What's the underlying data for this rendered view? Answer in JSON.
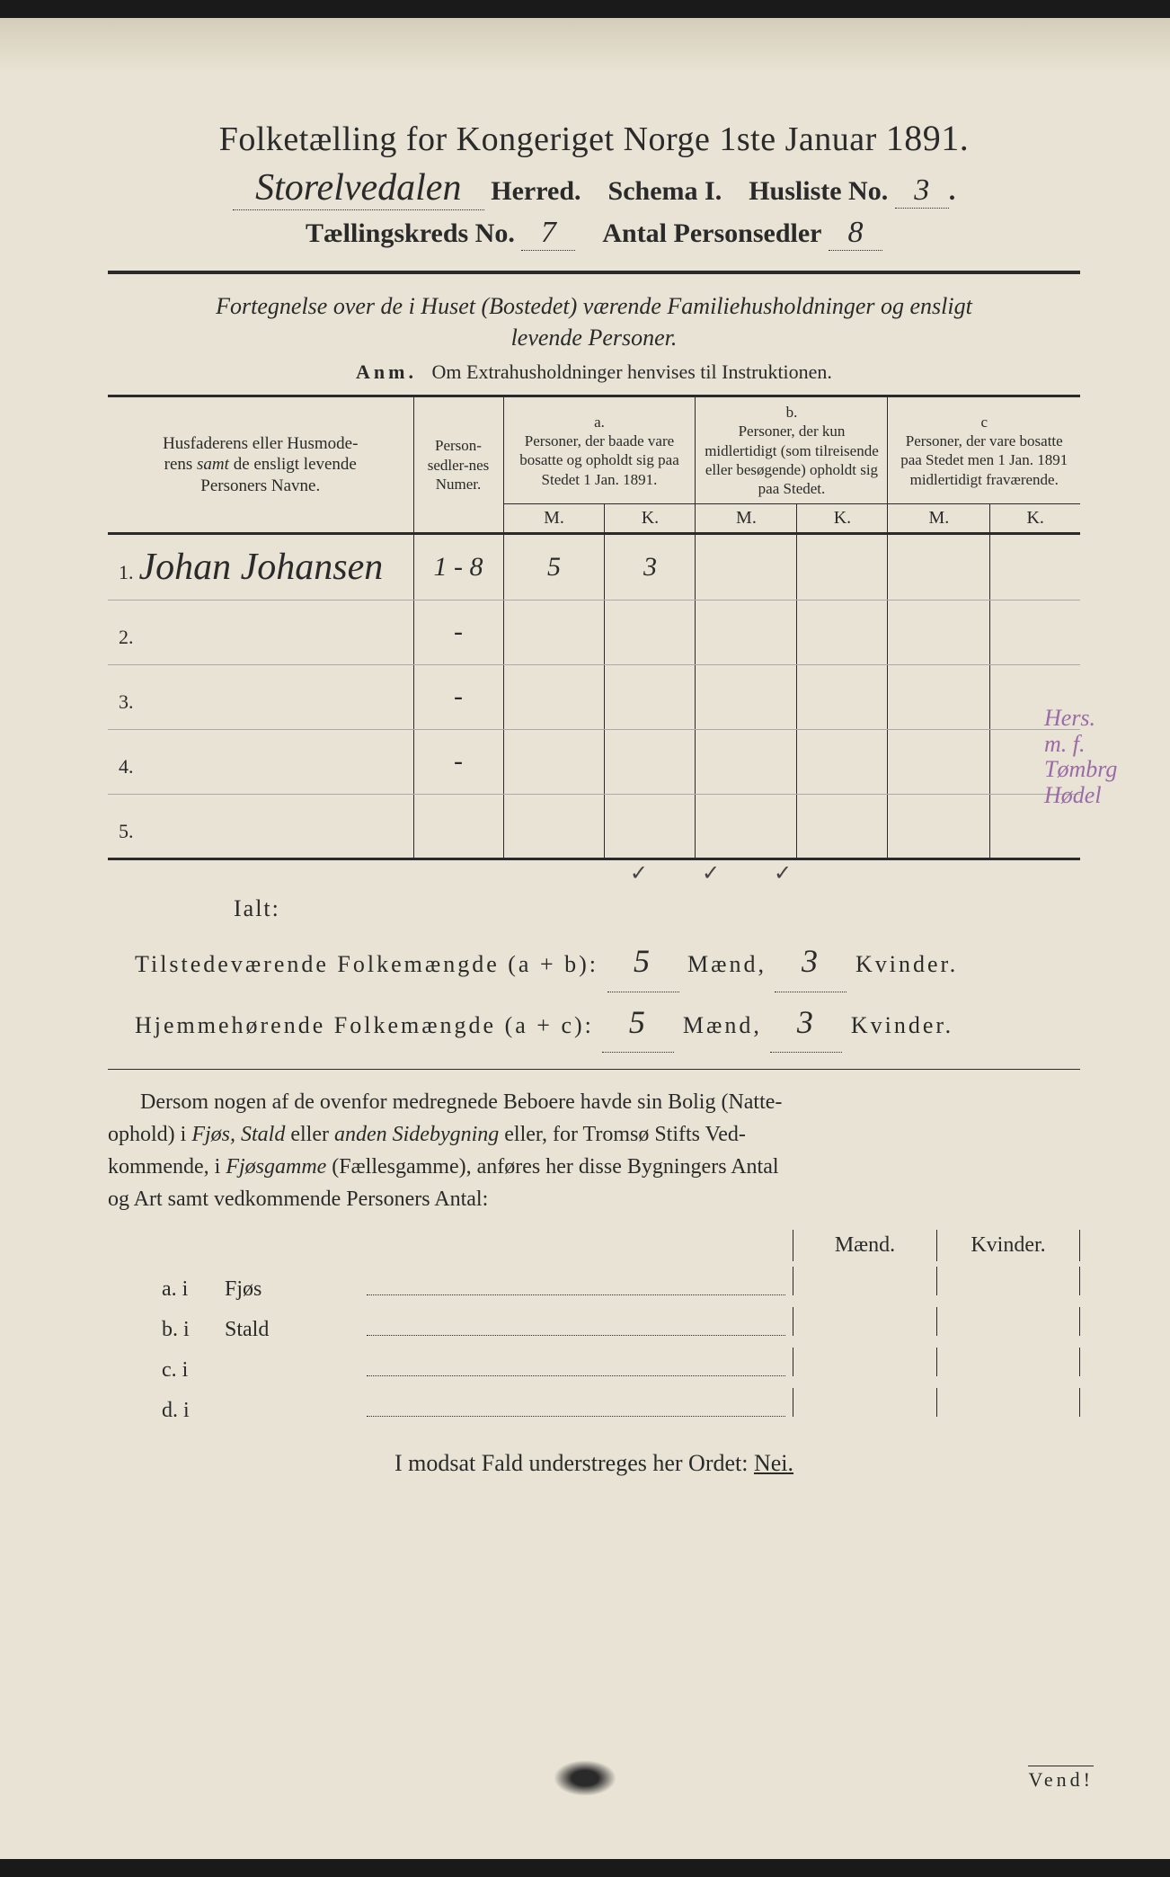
{
  "colors": {
    "paper_bg": "#e8e3d4",
    "ink": "#2a2a2a",
    "margin_note": "#9b6aa8",
    "page_border": "#1a1a1a"
  },
  "typography": {
    "title_fontsize_pt": 29,
    "body_fontsize_pt": 18,
    "table_header_fontsize_pt": 14,
    "cursive_family": "Brush Script MT",
    "serif_family": "Georgia"
  },
  "header": {
    "title": "Folketælling for Kongeriget Norge 1ste Januar",
    "year": "1891.",
    "herred_name": "Storelvedalen",
    "herred_label": "Herred.",
    "schema_label": "Schema I.",
    "husliste_label": "Husliste No.",
    "husliste_no": "3",
    "kreds_label": "Tællingskreds No.",
    "kreds_no": "7",
    "antal_label": "Antal Personsedler",
    "antal_no": "8"
  },
  "subtitle": {
    "line1": "Fortegnelse over de i Huset (Bostedet) værende Familiehusholdninger og ensligt",
    "line2": "levende Personer."
  },
  "anm": {
    "prefix": "Anm.",
    "text": "Om Extrahusholdninger henvises til Instruktionen."
  },
  "table": {
    "col_name": "Husfaderens eller Husmoderens samt de ensligt levende Personers Navne.",
    "col_name_italic": "samt",
    "col_num": "Person-sedler-nes Numer.",
    "col_a_tag": "a.",
    "col_a": "Personer, der baade vare bosatte og opholdt sig paa Stedet 1 Jan. 1891.",
    "col_b_tag": "b.",
    "col_b": "Personer, der kun midlertidigt (som tilreisende eller besøgende) opholdt sig paa Stedet.",
    "col_c_tag": "c",
    "col_c": "Personer, der vare bosatte paa Stedet men 1 Jan. 1891 midlertidigt fraværende.",
    "m": "M.",
    "k": "K.",
    "rows": [
      {
        "n": "1.",
        "name": "Johan Johansen",
        "num": "1 - 8",
        "am": "5",
        "ak": "3",
        "bm": "",
        "bk": "",
        "cm": "",
        "ck": ""
      },
      {
        "n": "2.",
        "name": "",
        "num": "-",
        "am": "",
        "ak": "",
        "bm": "",
        "bk": "",
        "cm": "",
        "ck": ""
      },
      {
        "n": "3.",
        "name": "",
        "num": "-",
        "am": "",
        "ak": "",
        "bm": "",
        "bk": "",
        "cm": "",
        "ck": ""
      },
      {
        "n": "4.",
        "name": "",
        "num": "-",
        "am": "",
        "ak": "",
        "bm": "",
        "bk": "",
        "cm": "",
        "ck": ""
      },
      {
        "n": "5.",
        "name": "",
        "num": "",
        "am": "",
        "ak": "",
        "bm": "",
        "bk": "",
        "cm": "",
        "ck": ""
      }
    ]
  },
  "margin_note": {
    "l1": "Hers.",
    "l2": "m. f.",
    "l3": "Tømbrg",
    "l4": "Hødel"
  },
  "checkmarks": "✓✓✓",
  "totals": {
    "ialt": "Ialt:",
    "line1_label": "Tilstedeværende Folkemængde (a + b):",
    "line2_label": "Hjemmehørende Folkemængde (a + c):",
    "l1_m": "5",
    "l1_k": "3",
    "l2_m": "5",
    "l2_k": "3",
    "maend": "Mænd,",
    "kvinder": "Kvinder."
  },
  "paragraph": "Dersom nogen af de ovenfor medregnede Beboere havde sin Bolig (Natteophold) i Fjøs, Stald eller anden Sidebygning eller, for Tromsø Stifts Vedkommende, i Fjøsgamme (Fællesgamme), anføres her disse Bygningers Antal og Art samt vedkommende Personers Antal:",
  "buildings": {
    "maend": "Mænd.",
    "kvinder": "Kvinder.",
    "rows": [
      {
        "lbl": "a.  i",
        "type": "Fjøs"
      },
      {
        "lbl": "b.  i",
        "type": "Stald"
      },
      {
        "lbl": "c.  i",
        "type": ""
      },
      {
        "lbl": "d.  i",
        "type": ""
      }
    ]
  },
  "footer": {
    "text": "I modsat Fald understreges her Ordet:",
    "nei": "Nei.",
    "vend": "Vend!"
  }
}
